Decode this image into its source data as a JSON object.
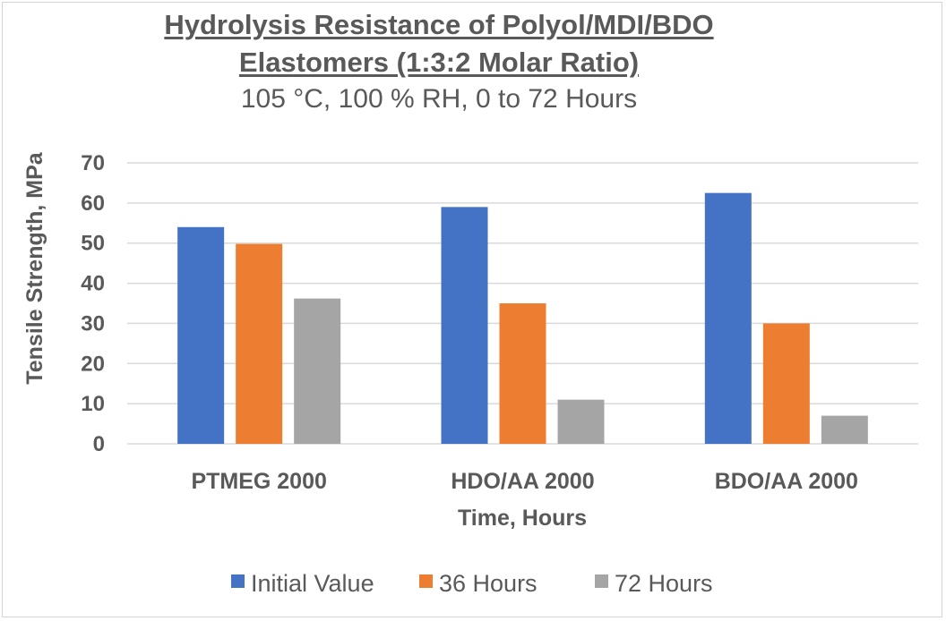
{
  "chart_data": {
    "type": "bar",
    "title_line1": "Hydrolysis Resistance  of Polyol/MDI/BDO",
    "title_line2": "Elastomers (1:3:2 Molar Ratio)",
    "subtitle": "105 °C, 100 % RH, 0 to 72 Hours",
    "xlabel": "Time, Hours",
    "ylabel": "Tensile Strength, MPa",
    "categories": [
      "PTMEG 2000",
      "HDO/AA 2000",
      "BDO/AA 2000"
    ],
    "series": [
      {
        "name": "Initial Value",
        "color": "#4472c4",
        "values": [
          54,
          59,
          62.5
        ]
      },
      {
        "name": "36 Hours",
        "color": "#ed7d31",
        "values": [
          49.8,
          35,
          30
        ]
      },
      {
        "name": "72 Hours",
        "color": "#a5a5a5",
        "values": [
          36.2,
          11,
          7
        ]
      }
    ],
    "ylim": [
      0,
      70
    ],
    "yticks": [
      0,
      10,
      20,
      30,
      40,
      50,
      60,
      70
    ],
    "grid": true,
    "legend_position": "bottom"
  }
}
